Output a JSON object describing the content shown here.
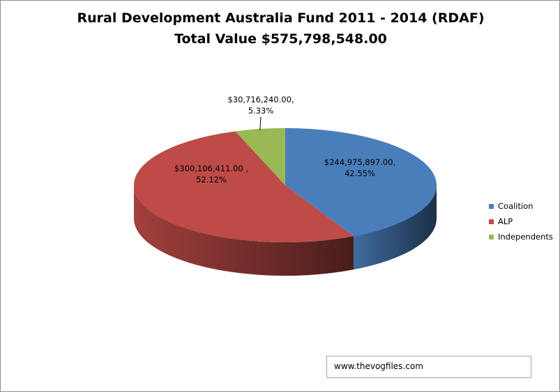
{
  "chart_data": {
    "type": "pie",
    "title": "Rural Development Australia Fund 2011 - 2014 (RDAF)",
    "subtitle": "Total Value $575,798,548.00",
    "three_d": true,
    "legend_position": "right",
    "slices": [
      {
        "name": "Coalition",
        "value": 244975897.0,
        "percent": 42.55,
        "value_label": "$244,975,897.00,",
        "percent_label": "42.55%",
        "color": "#4a7ebb"
      },
      {
        "name": "ALP",
        "value": 300106411.0,
        "percent": 52.12,
        "value_label": "$300,106,411.00 ,",
        "percent_label": "52.12%",
        "color": "#be4b48"
      },
      {
        "name": "Independents",
        "value": 30716240.0,
        "percent": 5.33,
        "value_label": "$30,716,240.00,",
        "percent_label": "5.33%",
        "color": "#98b954"
      }
    ]
  },
  "source_text": "www.thevogfiles.com"
}
